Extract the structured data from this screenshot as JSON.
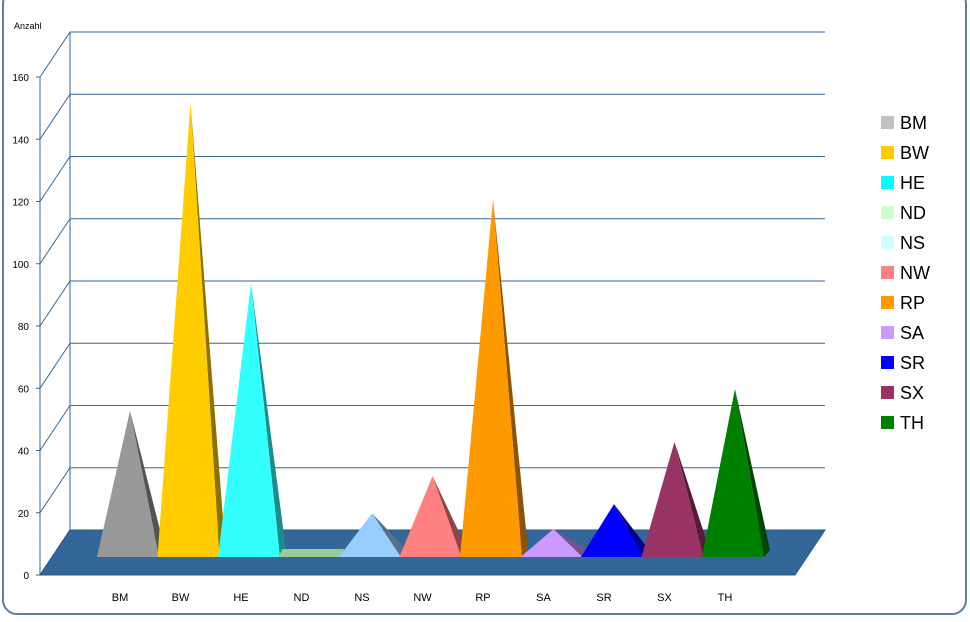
{
  "chart_data": {
    "type": "bar",
    "ylabel": "Anzahl",
    "xlabel": "",
    "title": "",
    "ylim": [
      0,
      160
    ],
    "yticks": [
      0,
      20,
      40,
      60,
      80,
      100,
      120,
      140,
      160
    ],
    "grid": true,
    "legend_position": "right",
    "categories": [
      "BM",
      "BW",
      "HE",
      "ND",
      "NS",
      "NW",
      "RP",
      "SA",
      "SR",
      "SX",
      "TH"
    ],
    "values": [
      47,
      146,
      88,
      0,
      14,
      26,
      115,
      9,
      17,
      37,
      54
    ],
    "colors": [
      "#999999",
      "#FFCC00",
      "#33FFFF",
      "#99CC99",
      "#99CCFF",
      "#FF8080",
      "#FF9900",
      "#CC99FF",
      "#0000FF",
      "#993366",
      "#008000"
    ],
    "legend": [
      {
        "label": "BM",
        "color": "#C0C0C0"
      },
      {
        "label": "BW",
        "color": "#FFCC00"
      },
      {
        "label": "HE",
        "color": "#00FFFF"
      },
      {
        "label": "ND",
        "color": "#CCFFCC"
      },
      {
        "label": "NS",
        "color": "#CCFFFF"
      },
      {
        "label": "NW",
        "color": "#FF8080"
      },
      {
        "label": "RP",
        "color": "#FF9900"
      },
      {
        "label": "SA",
        "color": "#CC99FF"
      },
      {
        "label": "SR",
        "color": "#0000FF"
      },
      {
        "label": "SX",
        "color": "#993366"
      },
      {
        "label": "TH",
        "color": "#008000"
      }
    ],
    "floor_color": "#336699",
    "gridline_color": "#336699",
    "frame_color": "#5A7FA6"
  }
}
